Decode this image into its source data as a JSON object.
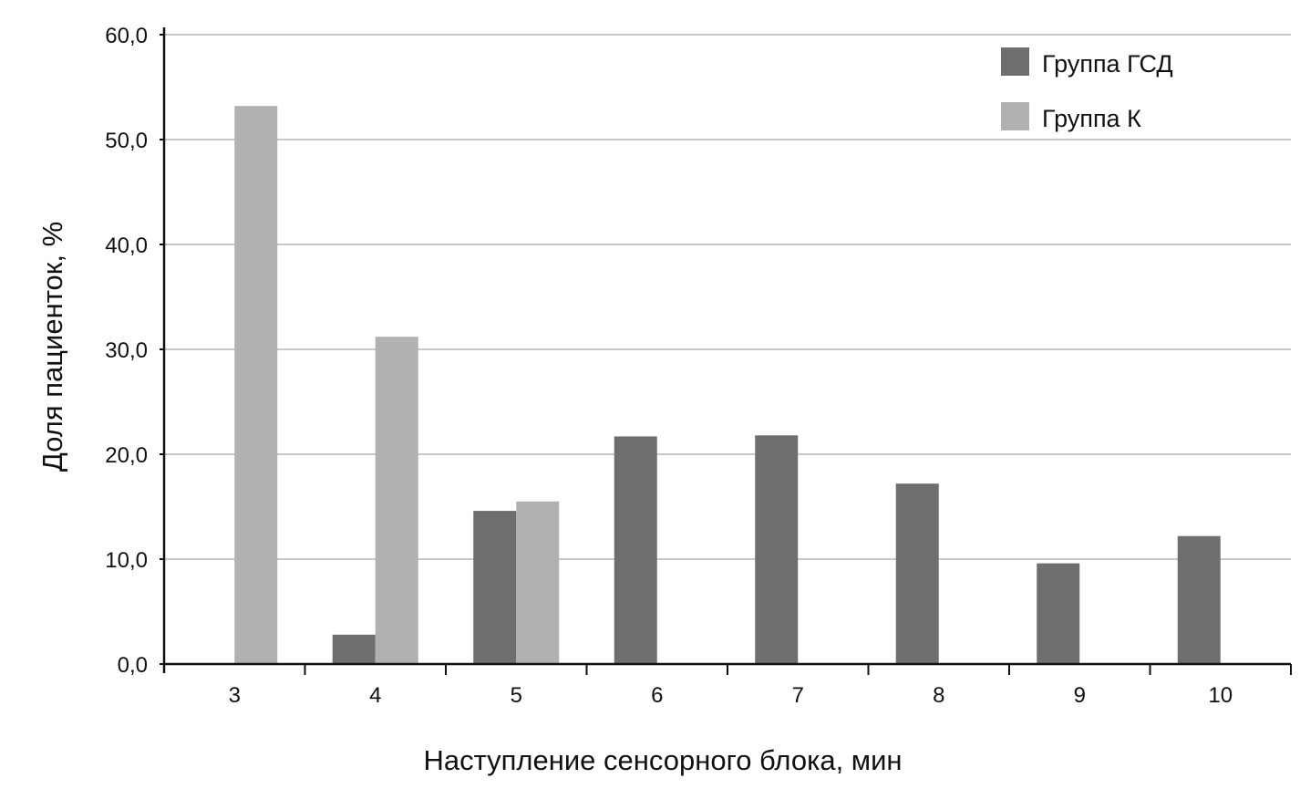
{
  "chart_data": {
    "type": "bar",
    "title": "",
    "xlabel": "Наступление сенсорного блока, мин",
    "ylabel": "Доля пациенток, %",
    "categories": [
      "3",
      "4",
      "5",
      "6",
      "7",
      "8",
      "9",
      "10"
    ],
    "series": [
      {
        "name": "Группа ГСД",
        "color": "#6e6e6e",
        "values": [
          0,
          2.8,
          14.6,
          21.7,
          21.8,
          17.2,
          9.6,
          12.2
        ]
      },
      {
        "name": "Группа К",
        "color": "#b1b1b1",
        "values": [
          53.2,
          31.2,
          15.5,
          0,
          0,
          0,
          0,
          0
        ]
      }
    ],
    "ylim": [
      0,
      60
    ],
    "yticks": [
      "0,0",
      "10,0",
      "20,0",
      "30,0",
      "40,0",
      "50,0",
      "60,0"
    ],
    "grid": true,
    "legend_position": "top-right"
  }
}
